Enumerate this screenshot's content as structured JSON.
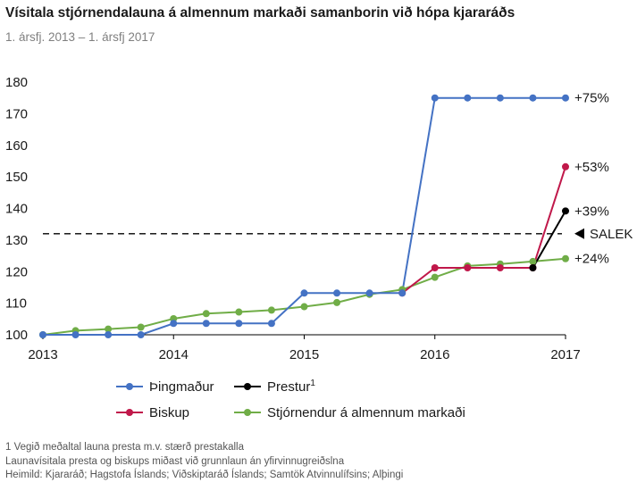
{
  "title": "Vísitala stjórnendalauna á almennum markaði samanborin við hópa kjararáðs",
  "subtitle": "1. ársfj. 2013 – 1. ársfj 2017",
  "chart_data": {
    "type": "line",
    "xlim": [
      2013,
      2017
    ],
    "ylim": [
      100,
      180
    ],
    "x_ticks": [
      "2013",
      "2014",
      "2015",
      "2016",
      "2017"
    ],
    "y_ticks": [
      "100",
      "110",
      "120",
      "130",
      "140",
      "150",
      "160",
      "170",
      "180"
    ],
    "grid": false,
    "legend_position": "bottom",
    "reference_line": {
      "label": "SALEK",
      "y": 132,
      "style": "dashed",
      "color": "#000000"
    },
    "series": [
      {
        "name": "Þingmaður",
        "color": "#4472c4",
        "end_label": "+75%",
        "x": [
          2013.0,
          2013.25,
          2013.5,
          2013.75,
          2014.0,
          2014.25,
          2014.5,
          2014.75,
          2015.0,
          2015.25,
          2015.5,
          2015.75,
          2016.0,
          2016.25,
          2016.5,
          2016.75,
          2017.0
        ],
        "y": [
          100,
          100,
          100,
          100,
          103.6,
          103.6,
          103.6,
          103.6,
          113.2,
          113.2,
          113.2,
          113.2,
          175,
          175,
          175,
          175,
          175
        ]
      },
      {
        "name": "Biskup",
        "color": "#c0184a",
        "end_label": "+53%",
        "x": [
          2015.75,
          2016.0,
          2016.25,
          2016.5,
          2016.75,
          2017.0
        ],
        "y": [
          113.2,
          121.2,
          121.2,
          121.2,
          121.2,
          153.2
        ]
      },
      {
        "name": "Prestur",
        "name_superscript": "1",
        "color": "#000000",
        "end_label": "+39%",
        "x": [
          2016.75,
          2017.0
        ],
        "y": [
          121.2,
          139.2
        ]
      },
      {
        "name": "Stjórnendur á almennum markaði",
        "color": "#70ad47",
        "end_label": "+24%",
        "x": [
          2013.0,
          2013.25,
          2013.5,
          2013.75,
          2014.0,
          2014.25,
          2014.5,
          2014.75,
          2015.0,
          2015.25,
          2015.5,
          2015.75,
          2016.0,
          2016.25,
          2016.5,
          2016.75,
          2017.0
        ],
        "y": [
          100,
          101.3,
          101.8,
          102.4,
          105.1,
          106.7,
          107.2,
          107.8,
          108.9,
          110.2,
          112.8,
          114.3,
          118.2,
          121.8,
          122.4,
          123.2,
          124.1
        ]
      }
    ]
  },
  "footnotes": [
    "1 Vegið meðaltal launa presta m.v. stærð prestakalla",
    "Launavísitala presta og biskups miðast við grunnlaun án yfirvinnugreiðslna",
    "Heimild: Kjararáð; Hagstofa Íslands; Viðskiptaráð Íslands; Samtök Atvinnulífsins; Alþingi"
  ]
}
